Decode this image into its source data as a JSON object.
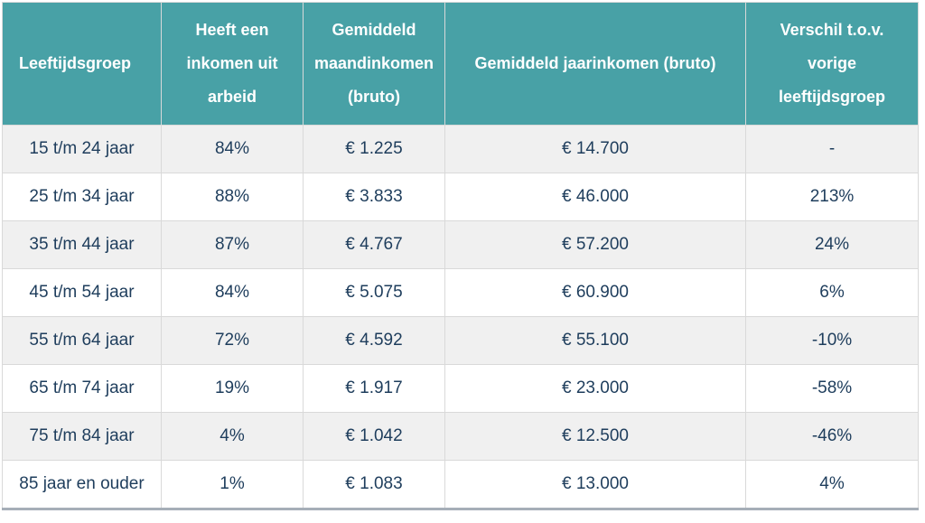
{
  "chart_data": {
    "type": "table",
    "columns": [
      "Leeftijdsgroep",
      "Heeft een inkomen uit arbeid",
      "Gemiddeld maandinkomen (bruto)",
      "Gemiddeld jaarinkomen (bruto)",
      "Verschil t.o.v. vorige leeftijdsgroep"
    ],
    "rows": [
      [
        "15 t/m 24 jaar",
        "84%",
        "€ 1.225",
        "€ 14.700",
        "-"
      ],
      [
        "25 t/m 34 jaar",
        "88%",
        "€ 3.833",
        "€ 46.000",
        "213%"
      ],
      [
        "35 t/m 44 jaar",
        "87%",
        "€ 4.767",
        "€ 57.200",
        "24%"
      ],
      [
        "45 t/m 54 jaar",
        "84%",
        "€ 5.075",
        "€ 60.900",
        "6%"
      ],
      [
        "55 t/m 64 jaar",
        "72%",
        "€ 4.592",
        "€ 55.100",
        "-10%"
      ],
      [
        "65 t/m 74 jaar",
        "19%",
        "€ 1.917",
        "€ 23.000",
        "-58%"
      ],
      [
        "75 t/m 84 jaar",
        "4%",
        "€ 1.042",
        "€ 12.500",
        "-46%"
      ],
      [
        "85 jaar en ouder",
        "1%",
        "€ 1.083",
        "€ 13.000",
        "4%"
      ]
    ],
    "layout": {
      "header_rows": 1,
      "alternating_row_shading": true,
      "first_column_header_align": "left"
    }
  },
  "colors": {
    "header_bg": "#48a1a6",
    "header_text": "#ffffff",
    "cell_text": "#1e3d5c",
    "row_bg": "#ffffff",
    "row_alt_bg": "#f0f0f0",
    "cell_border": "#d9d9d9",
    "outer_border": "#c9ced6",
    "bottom_border": "#a6aeb8"
  }
}
